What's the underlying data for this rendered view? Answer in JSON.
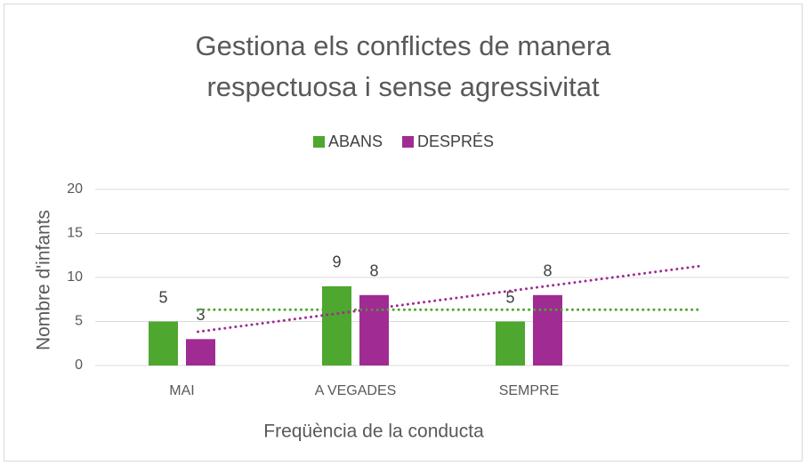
{
  "chart_data": {
    "type": "bar",
    "title": "Gestiona els conflictes de manera respectuosa i sense agressivitat",
    "x_label": "Freqüència de la conducta",
    "y_label": "Nombre d'infants",
    "categories": [
      "MAI",
      "A VEGADES",
      "SEMPRE"
    ],
    "series": [
      {
        "name": "ABANS",
        "color": "#4ea72e",
        "values": [
          5,
          9,
          5
        ]
      },
      {
        "name": "DESPRÉS",
        "color": "#a02b93",
        "values": [
          3,
          8,
          8
        ]
      }
    ],
    "ylim": [
      0,
      20
    ],
    "yticks": [
      0,
      5,
      10,
      15,
      20
    ],
    "grid": true,
    "legend": "top",
    "trendline": "linear",
    "trendline_forward": 1
  }
}
